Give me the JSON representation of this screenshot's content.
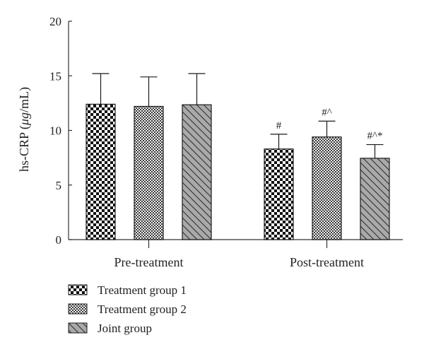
{
  "chart_data": {
    "type": "bar",
    "ylabel_prefix": "hs-CRP (",
    "ylabel_unit": "μg",
    "ylabel_suffix": "/mL)",
    "ylim": [
      0,
      20
    ],
    "yticks": [
      "0",
      "5",
      "10",
      "15",
      "20"
    ],
    "categories": [
      "Pre-treatment",
      "Post-treatment"
    ],
    "series": [
      {
        "name": "Treatment group 1",
        "pattern": "checker-large",
        "values": [
          12.4,
          8.3
        ],
        "errors": [
          2.8,
          1.35
        ],
        "annotations": [
          "",
          "#"
        ]
      },
      {
        "name": "Treatment group 2",
        "pattern": "checker-small",
        "values": [
          12.2,
          9.4
        ],
        "errors": [
          2.7,
          1.45
        ],
        "annotations": [
          "",
          "#^"
        ]
      },
      {
        "name": "Joint group",
        "pattern": "diagonal",
        "values": [
          12.35,
          7.45
        ],
        "errors": [
          2.85,
          1.25
        ],
        "annotations": [
          "",
          "#^*"
        ]
      }
    ],
    "colors": {
      "axis": "#333333",
      "bar_stroke": "#1a1a1a",
      "dark": "#111111",
      "mid": "#555555",
      "joint_fill": "#a9a9a9"
    }
  }
}
